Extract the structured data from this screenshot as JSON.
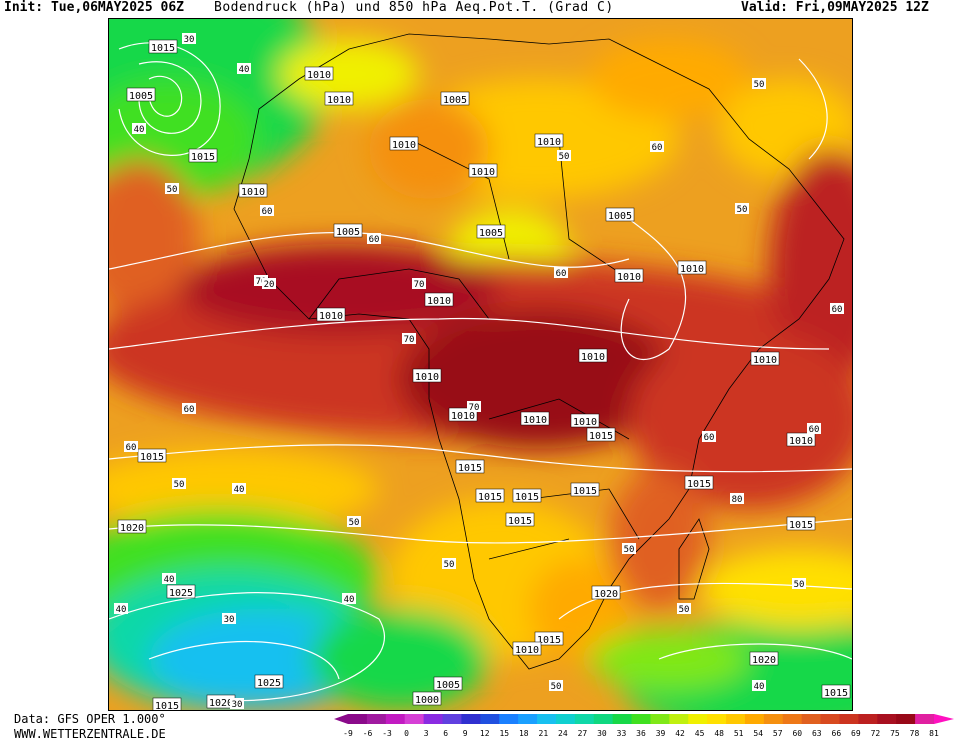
{
  "header": {
    "init": "Init: Tue,06MAY2025 06Z",
    "title": "Bodendruck (hPa) und 850 hPa Aeq.Pot.T. (Grad C)",
    "valid": "Valid: Fri,09MAY2025 12Z"
  },
  "footer": {
    "data_source": "Data: GFS OPER 1.000°",
    "website": "WWW.WETTERZENTRALE.DE"
  },
  "colorbar": {
    "ticks": [
      "-9",
      "-6",
      "-3",
      "0",
      "3",
      "6",
      "9",
      "12",
      "15",
      "18",
      "21",
      "24",
      "27",
      "30",
      "33",
      "36",
      "39",
      "42",
      "45",
      "48",
      "51",
      "54",
      "57",
      "60",
      "63",
      "66",
      "69",
      "72",
      "75",
      "78",
      "81"
    ],
    "colors": [
      "#8a0a8a",
      "#a01aa0",
      "#c21bc2",
      "#d640d6",
      "#8a2be2",
      "#6040e0",
      "#3030d0",
      "#2050e0",
      "#1a80ff",
      "#1aa0ff",
      "#18c0f0",
      "#10d0d0",
      "#10d8a8",
      "#10d880",
      "#18d848",
      "#40e020",
      "#80e818",
      "#c0f010",
      "#f0f000",
      "#ffe000",
      "#ffc800",
      "#ffaa00",
      "#f59010",
      "#ee7818",
      "#e06020",
      "#d84a20",
      "#cc3420",
      "#bc2020",
      "#a81020",
      "#980818",
      "#e020a0"
    ],
    "over_color": "#ff10c0"
  },
  "map": {
    "isobar_labels": [
      "1000",
      "1005",
      "1010",
      "1015",
      "1020",
      "1025"
    ],
    "ept_labels": [
      "20",
      "30",
      "40",
      "50",
      "60",
      "70",
      "80"
    ],
    "isobar_color": "#ffffff"
  }
}
